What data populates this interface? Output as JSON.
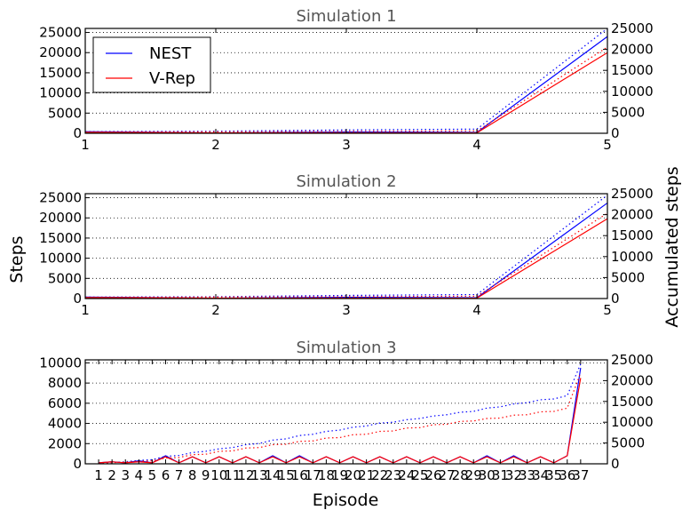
{
  "figure": {
    "ylabel_left": "Steps",
    "ylabel_right": "Accumulated steps",
    "xlabel": "Episode",
    "legend": [
      {
        "label": "NEST",
        "color": "#0000ff"
      },
      {
        "label": "V-Rep",
        "color": "#ff0000"
      }
    ]
  },
  "chart_data": [
    {
      "type": "line",
      "title": "Simulation 1",
      "x": [
        1,
        2,
        3,
        4,
        5
      ],
      "xlim": [
        1,
        5
      ],
      "xticks": [
        "1",
        "2",
        "3",
        "4",
        "5"
      ],
      "ylim_left": [
        0,
        26000
      ],
      "yticks_left": [
        0,
        5000,
        10000,
        15000,
        20000,
        25000
      ],
      "ylim_right": [
        0,
        25000
      ],
      "yticks_right": [
        0,
        5000,
        10000,
        15000,
        20000,
        25000
      ],
      "grid": true,
      "legend_position": "top-left",
      "series": [
        {
          "name": "NEST",
          "color": "#0000ff",
          "style": "solid",
          "axis": "left",
          "values": [
            400,
            100,
            300,
            200,
            24000
          ]
        },
        {
          "name": "V-Rep",
          "color": "#ff0000",
          "style": "solid",
          "axis": "left",
          "values": [
            250,
            100,
            100,
            100,
            20000
          ]
        },
        {
          "color": "#0000ff",
          "style": "dotted",
          "axis": "right",
          "values": [
            400,
            500,
            800,
            1000,
            25000
          ]
        },
        {
          "color": "#ff0000",
          "style": "dotted",
          "axis": "right",
          "values": [
            250,
            350,
            450,
            550,
            20550
          ]
        }
      ]
    },
    {
      "type": "line",
      "title": "Simulation 2",
      "x": [
        1,
        2,
        3,
        4,
        5
      ],
      "xlim": [
        1,
        5
      ],
      "xticks": [
        "1",
        "2",
        "3",
        "4",
        "5"
      ],
      "ylim_left": [
        0,
        26000
      ],
      "yticks_left": [
        0,
        5000,
        10000,
        15000,
        20000,
        25000
      ],
      "ylim_right": [
        0,
        25000
      ],
      "yticks_right": [
        0,
        5000,
        10000,
        15000,
        20000,
        25000
      ],
      "grid": true,
      "series": [
        {
          "name": "NEST",
          "color": "#0000ff",
          "style": "solid",
          "axis": "left",
          "values": [
            350,
            100,
            300,
            200,
            23700
          ]
        },
        {
          "name": "V-Rep",
          "color": "#ff0000",
          "style": "solid",
          "axis": "left",
          "values": [
            250,
            100,
            100,
            100,
            19800
          ]
        },
        {
          "color": "#0000ff",
          "style": "dotted",
          "axis": "right",
          "values": [
            350,
            450,
            750,
            950,
            24650
          ]
        },
        {
          "color": "#ff0000",
          "style": "dotted",
          "axis": "right",
          "values": [
            250,
            350,
            450,
            550,
            20350
          ]
        }
      ]
    },
    {
      "type": "line",
      "title": "Simulation 3",
      "x": [
        1,
        2,
        3,
        4,
        5,
        6,
        7,
        8,
        9,
        10,
        11,
        12,
        13,
        14,
        15,
        16,
        17,
        18,
        19,
        20,
        21,
        22,
        23,
        24,
        25,
        26,
        27,
        28,
        29,
        30,
        31,
        32,
        33,
        34,
        35,
        36,
        37
      ],
      "xlim": [
        0,
        39
      ],
      "xticks": [
        "1",
        "2",
        "3",
        "4",
        "5",
        "6",
        "7",
        "8",
        "9",
        "10",
        "11",
        "12",
        "13",
        "14",
        "15",
        "16",
        "17",
        "18",
        "19",
        "20",
        "21",
        "22",
        "23",
        "24",
        "25",
        "26",
        "27",
        "28",
        "29",
        "30",
        "31",
        "32",
        "33",
        "34",
        "35",
        "36",
        "37"
      ],
      "ylim_left": [
        0,
        10300
      ],
      "yticks_left": [
        0,
        2000,
        4000,
        6000,
        8000,
        10000
      ],
      "ylim_right": [
        0,
        25000
      ],
      "yticks_right": [
        0,
        5000,
        10000,
        15000,
        20000,
        25000
      ],
      "grid": true,
      "series": [
        {
          "name": "NEST",
          "color": "#0000ff",
          "style": "solid",
          "axis": "left",
          "values": [
            100,
            200,
            100,
            300,
            100,
            800,
            100,
            700,
            100,
            700,
            100,
            700,
            100,
            800,
            100,
            800,
            100,
            700,
            100,
            700,
            100,
            700,
            100,
            700,
            100,
            700,
            100,
            700,
            100,
            800,
            100,
            800,
            100,
            700,
            100,
            800,
            9500
          ]
        },
        {
          "name": "V-Rep",
          "color": "#ff0000",
          "style": "solid",
          "axis": "left",
          "values": [
            100,
            200,
            100,
            200,
            100,
            700,
            100,
            700,
            100,
            700,
            100,
            700,
            100,
            700,
            100,
            700,
            100,
            700,
            100,
            700,
            100,
            700,
            100,
            700,
            100,
            700,
            100,
            700,
            100,
            700,
            100,
            700,
            100,
            700,
            100,
            800,
            8500
          ]
        },
        {
          "color": "#0000ff",
          "style": "dotted",
          "axis": "right",
          "values": [
            100,
            300,
            500,
            800,
            1000,
            1800,
            2000,
            2700,
            3000,
            3600,
            3900,
            4600,
            4900,
            5700,
            6000,
            6800,
            7100,
            7800,
            8100,
            8800,
            9100,
            9800,
            10000,
            10600,
            10900,
            11500,
            11800,
            12400,
            12600,
            13400,
            13700,
            14400,
            14700,
            15400,
            15600,
            16400,
            24000
          ]
        },
        {
          "color": "#ff0000",
          "style": "dotted",
          "axis": "right",
          "values": [
            100,
            300,
            400,
            600,
            700,
            1400,
            1500,
            2200,
            2300,
            3000,
            3100,
            3800,
            3900,
            4600,
            4700,
            5400,
            5500,
            6200,
            6300,
            7000,
            7100,
            7800,
            7900,
            8600,
            8700,
            9400,
            9500,
            10200,
            10300,
            10900,
            11000,
            11700,
            11800,
            12500,
            12600,
            13400,
            21800
          ]
        }
      ]
    }
  ]
}
